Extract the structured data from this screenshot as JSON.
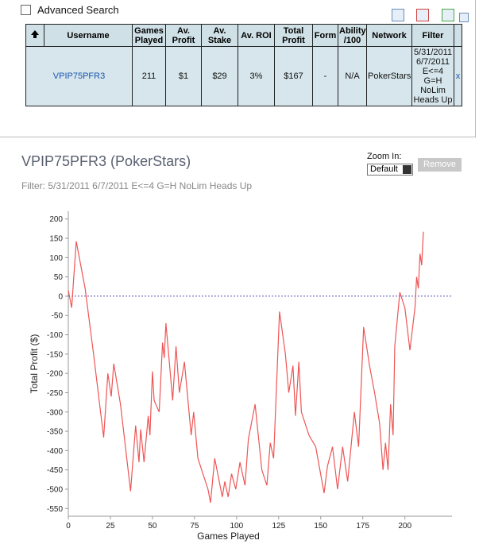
{
  "advanced_search": "Advanced Search",
  "table": {
    "headers": [
      "Username",
      "Games Played",
      "Av. Profit",
      "Av. Stake",
      "Av. ROI",
      "Total Profit",
      "Form",
      "Ability /100",
      "Network",
      "Filter"
    ],
    "rows": [
      [
        "VPIP75PFR3",
        "211",
        "$1",
        "$29",
        "3%",
        "$167",
        "-",
        "N/A",
        "PokerStars",
        "5/31/2011 6/7/2011 E<=4 G=H NoLim Heads Up",
        "x"
      ]
    ]
  },
  "zoom": {
    "label": "Zoom In:",
    "selected": "Default",
    "button": "Remove"
  },
  "chart_data": {
    "type": "line",
    "title": "VPIP75PFR3 (PokerStars)",
    "subtitle": "Filter: 5/31/2011 6/7/2011 E<=4 G=H NoLim Heads Up",
    "xlabel": "Games Played",
    "ylabel": "Total Profit ($)",
    "color": "#ee5555",
    "zero_line": true,
    "x": [
      0,
      2,
      4.7,
      10,
      15,
      21,
      23.5,
      25.5,
      27,
      31,
      37,
      40,
      42,
      43,
      45,
      47.5,
      48.5,
      50,
      51,
      54,
      56,
      57,
      58,
      60,
      62,
      64,
      66,
      69,
      73,
      74.5,
      77,
      83,
      84.5,
      87,
      91.5,
      93,
      95,
      97,
      99.5,
      102,
      105,
      107,
      111,
      115,
      118,
      120,
      122,
      125.5,
      129,
      131,
      133.5,
      135,
      137,
      138.5,
      143,
      147,
      152,
      154,
      157,
      160,
      163,
      166,
      170,
      172.5,
      175.5,
      179,
      182,
      185,
      187,
      188.5,
      190,
      191.5,
      193,
      194,
      197,
      200,
      203,
      206,
      207,
      208,
      209,
      210,
      211
    ],
    "values": [
      15,
      -30,
      142,
      20,
      -150,
      -366,
      -200,
      -260,
      -175,
      -280,
      -505,
      -335,
      -430,
      -345,
      -430,
      -310,
      -360,
      -195,
      -270,
      -300,
      -120,
      -160,
      -70,
      -170,
      -270,
      -130,
      -250,
      -170,
      -360,
      -300,
      -420,
      -500,
      -535,
      -420,
      -520,
      -480,
      -520,
      -460,
      -500,
      -430,
      -490,
      -370,
      -280,
      -450,
      -490,
      -380,
      -420,
      -40,
      -150,
      -250,
      -180,
      -310,
      -170,
      -300,
      -360,
      -390,
      -510,
      -440,
      -390,
      -500,
      -390,
      -480,
      -300,
      -390,
      -80,
      -180,
      -250,
      -330,
      -450,
      -380,
      -450,
      -280,
      -360,
      -130,
      10,
      -30,
      -140,
      -30,
      50,
      20,
      110,
      80,
      167
    ],
    "xlim": [
      0,
      228
    ],
    "ylim": [
      -570,
      220
    ],
    "xticks": [
      0,
      25,
      50,
      75,
      100,
      125,
      150,
      175,
      200
    ],
    "yticks": [
      -550,
      -500,
      -450,
      -400,
      -350,
      -300,
      -250,
      -200,
      -150,
      -100,
      -50,
      0,
      50,
      100,
      150,
      200
    ]
  }
}
